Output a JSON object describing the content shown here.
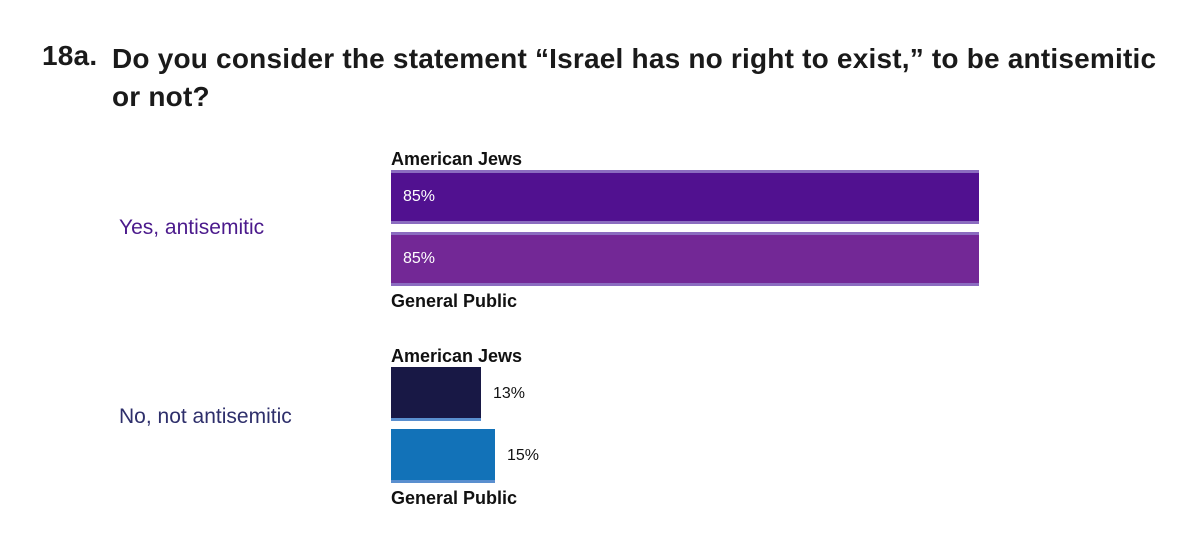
{
  "title_number": "18a.",
  "title": "Do you consider the statement “Israel has no right to exist,” to be antisemitic or not?",
  "colors": {
    "american_jews_yes": "#511190",
    "general_public_yes": "#732896",
    "american_jews_no": "#181845",
    "general_public_no": "#1272b8",
    "yes_label": "#4b1a8c",
    "no_label": "#2e2f6b",
    "bar_top_border": "#8b6cc0"
  },
  "chart_data": {
    "type": "bar",
    "orientation": "horizontal",
    "title": "Do you consider the statement “Israel has no right to exist,” to be antisemitic or not?",
    "categories": [
      "Yes, antisemitic",
      "No, not antisemitic"
    ],
    "series": [
      {
        "name": "American Jews",
        "values": [
          85,
          13
        ],
        "labels": [
          "85%",
          "13%"
        ]
      },
      {
        "name": "General Public",
        "values": [
          85,
          15
        ],
        "labels": [
          "85%",
          "15%"
        ]
      }
    ],
    "xlim": [
      0,
      100
    ],
    "grid": false,
    "legend": "series names printed above and below each bar pair"
  }
}
